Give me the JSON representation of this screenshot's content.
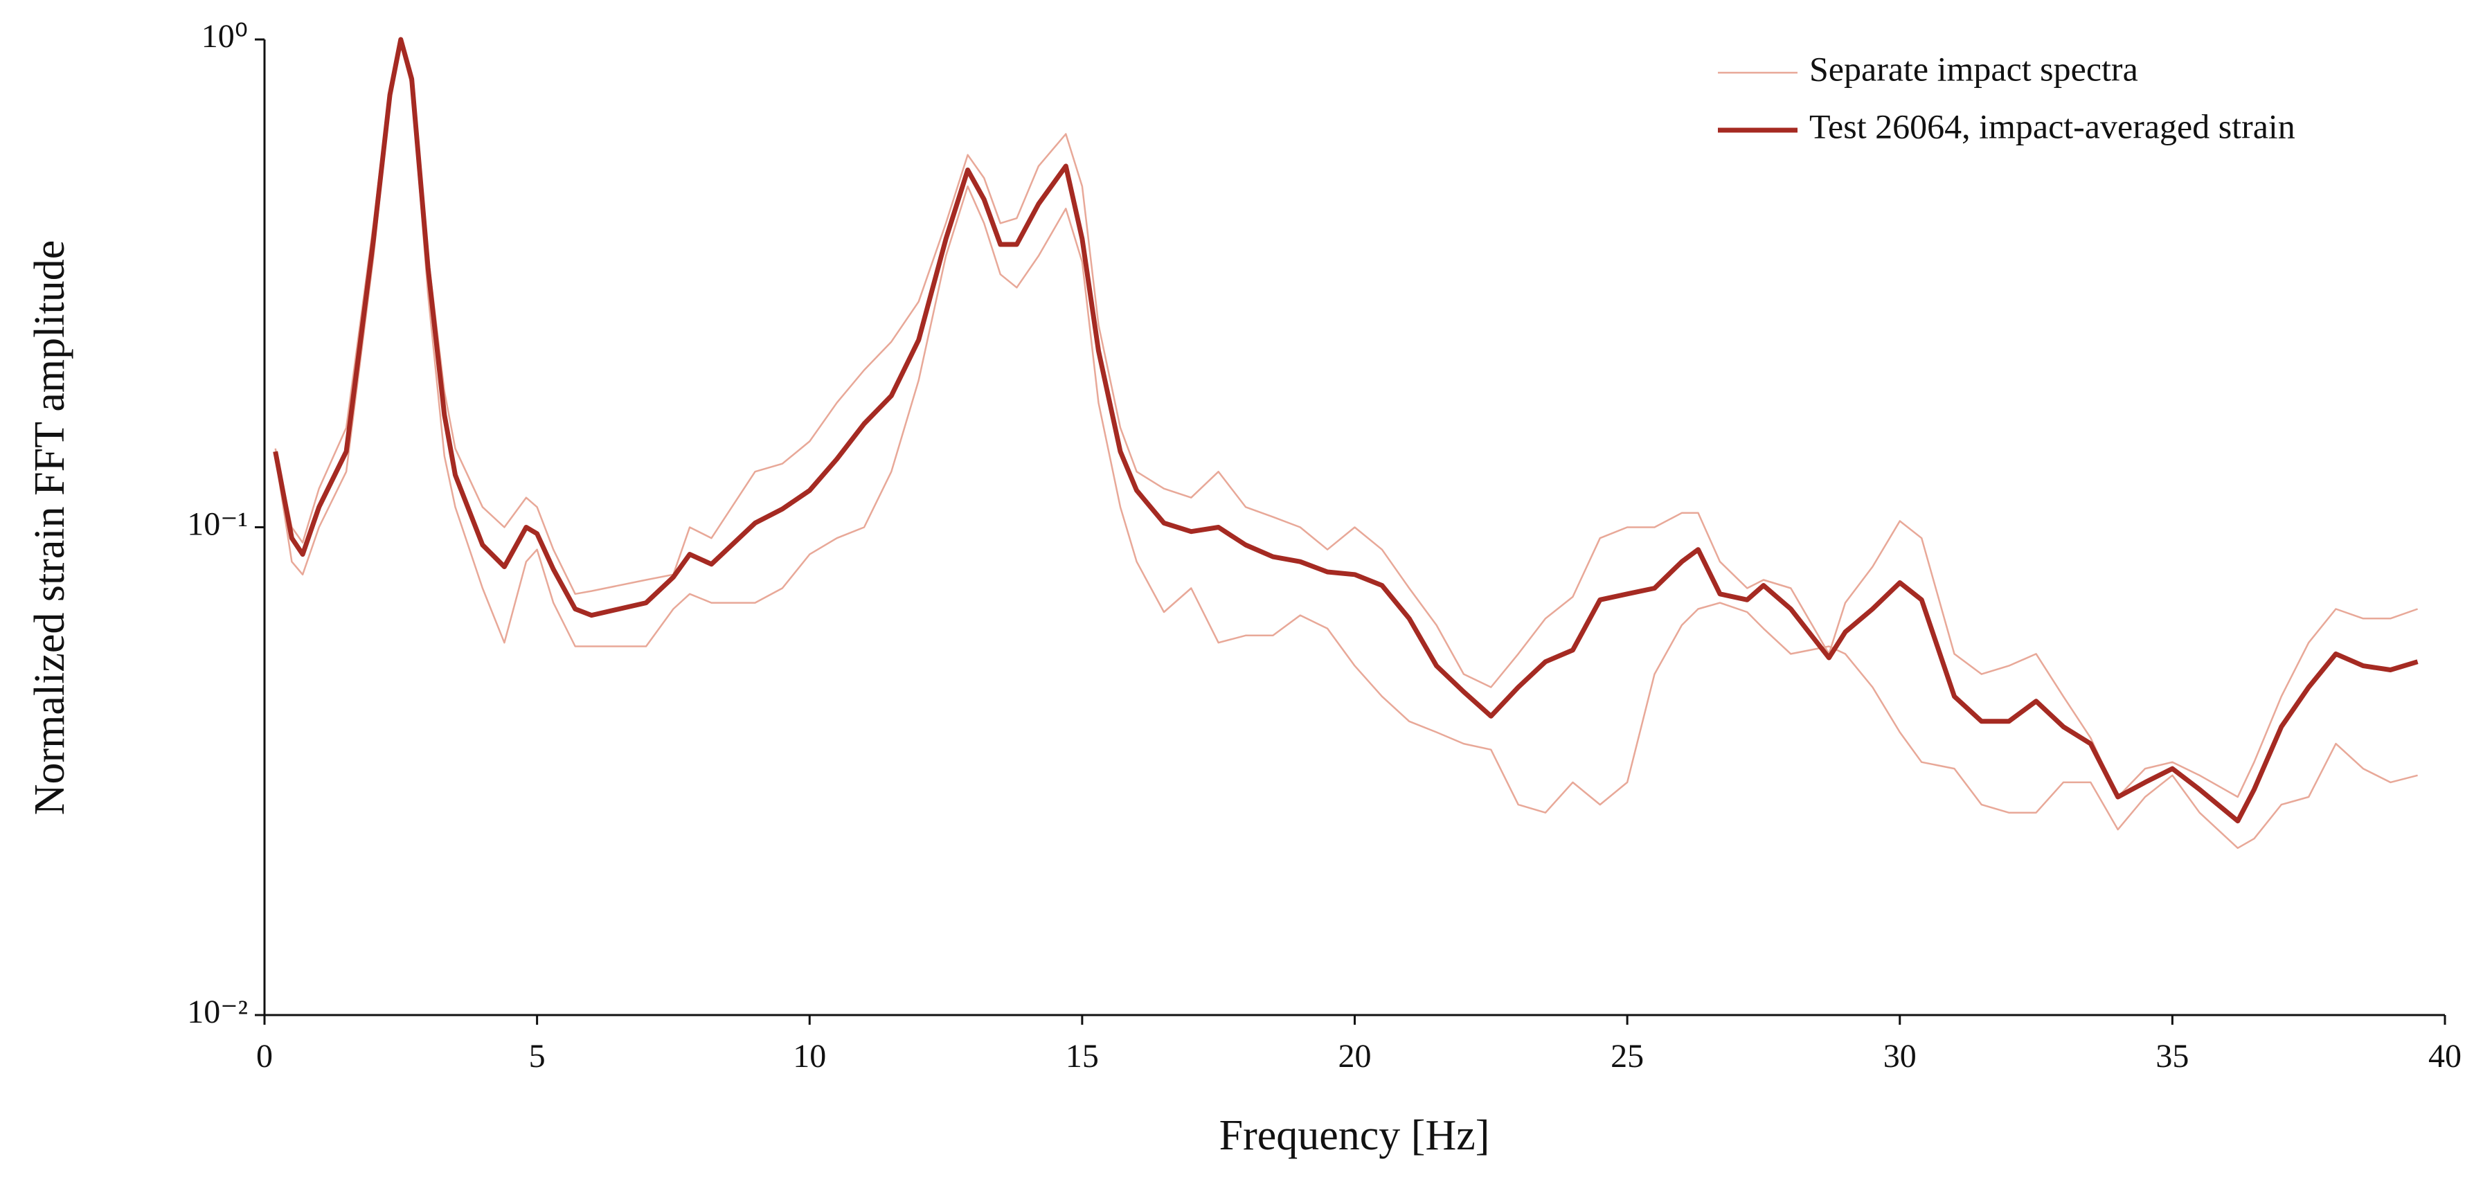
{
  "chart_data": {
    "type": "line",
    "xlabel": "Frequency [Hz]",
    "ylabel": "Normalized strain FFT amplitude",
    "yscale": "log",
    "grid": false,
    "legend": "upper right",
    "xlim": [
      0,
      40
    ],
    "xticks": [
      0,
      5,
      10,
      15,
      20,
      25,
      30,
      35,
      40
    ],
    "ylim": [
      0.01,
      1
    ],
    "yticks": [
      {
        "value": 0.01,
        "label": "10⁻²"
      },
      {
        "value": 0.1,
        "label": "10⁻¹"
      },
      {
        "value": 1,
        "label": "10⁰"
      }
    ],
    "x": [
      0.2,
      0.5,
      0.7,
      1.0,
      1.5,
      2.0,
      2.3,
      2.5,
      2.7,
      3.0,
      3.3,
      3.5,
      4.0,
      4.4,
      4.8,
      5.0,
      5.3,
      5.7,
      6.0,
      7.0,
      7.5,
      7.8,
      8.2,
      9.0,
      9.5,
      10.0,
      10.5,
      11.0,
      11.5,
      12.0,
      12.5,
      12.9,
      13.2,
      13.5,
      13.8,
      14.2,
      14.7,
      15.0,
      15.3,
      15.7,
      16.0,
      16.5,
      17.0,
      17.5,
      18.0,
      18.5,
      19.0,
      19.5,
      20.0,
      20.5,
      21.0,
      21.5,
      22.0,
      22.5,
      23.0,
      23.5,
      24.0,
      24.5,
      25.0,
      25.5,
      26.0,
      26.3,
      26.7,
      27.2,
      27.5,
      28.0,
      28.7,
      29.0,
      29.5,
      30.0,
      30.4,
      31.0,
      31.5,
      32.0,
      32.5,
      33.0,
      33.5,
      34.0,
      34.5,
      35.0,
      35.5,
      36.2,
      36.5,
      37.0,
      37.5,
      38.0,
      38.5,
      39.0,
      39.5
    ],
    "series": [
      {
        "name": "Separate impact spectra",
        "color": "#e8a898",
        "width": 2.5,
        "values": [
          0.145,
          0.1,
          0.093,
          0.12,
          0.16,
          0.42,
          0.8,
          1.0,
          0.85,
          0.36,
          0.19,
          0.145,
          0.11,
          0.1,
          0.115,
          0.11,
          0.09,
          0.073,
          0.074,
          0.078,
          0.08,
          0.1,
          0.095,
          0.13,
          0.135,
          0.15,
          0.18,
          0.21,
          0.24,
          0.29,
          0.42,
          0.58,
          0.52,
          0.42,
          0.43,
          0.55,
          0.64,
          0.5,
          0.26,
          0.16,
          0.13,
          0.12,
          0.115,
          0.13,
          0.11,
          0.105,
          0.1,
          0.09,
          0.1,
          0.09,
          0.075,
          0.063,
          0.05,
          0.047,
          0.055,
          0.065,
          0.072,
          0.095,
          0.1,
          0.1,
          0.107,
          0.107,
          0.085,
          0.075,
          0.078,
          0.075,
          0.055,
          0.07,
          0.083,
          0.103,
          0.095,
          0.055,
          0.05,
          0.052,
          0.055,
          0.045,
          0.037,
          0.028,
          0.032,
          0.033,
          0.031,
          0.028,
          0.033,
          0.045,
          0.058,
          0.068,
          0.065,
          0.065,
          0.068
        ]
      },
      {
        "color": "#e8a898",
        "width": 2.5,
        "values": [
          0.14,
          0.085,
          0.08,
          0.1,
          0.13,
          0.36,
          0.75,
          0.98,
          0.8,
          0.3,
          0.14,
          0.11,
          0.075,
          0.058,
          0.085,
          0.09,
          0.07,
          0.057,
          0.057,
          0.057,
          0.068,
          0.073,
          0.07,
          0.07,
          0.075,
          0.088,
          0.095,
          0.1,
          0.13,
          0.2,
          0.36,
          0.5,
          0.42,
          0.33,
          0.31,
          0.36,
          0.45,
          0.35,
          0.18,
          0.11,
          0.085,
          0.067,
          0.075,
          0.058,
          0.06,
          0.06,
          0.066,
          0.062,
          0.052,
          0.045,
          0.04,
          0.038,
          0.036,
          0.035,
          0.027,
          0.026,
          0.03,
          0.027,
          0.03,
          0.05,
          0.063,
          0.068,
          0.07,
          0.067,
          0.062,
          0.055,
          0.057,
          0.055,
          0.047,
          0.038,
          0.033,
          0.032,
          0.027,
          0.026,
          0.026,
          0.03,
          0.03,
          0.024,
          0.028,
          0.031,
          0.026,
          0.022,
          0.023,
          0.027,
          0.028,
          0.036,
          0.032,
          0.03,
          0.031
        ]
      },
      {
        "name": "Test 26064, impact-averaged strain",
        "color": "#a52a22",
        "width": 7,
        "values": [
          0.143,
          0.095,
          0.088,
          0.11,
          0.143,
          0.39,
          0.77,
          1.0,
          0.83,
          0.34,
          0.17,
          0.128,
          0.092,
          0.083,
          0.1,
          0.097,
          0.082,
          0.068,
          0.066,
          0.07,
          0.079,
          0.088,
          0.084,
          0.102,
          0.109,
          0.119,
          0.138,
          0.163,
          0.186,
          0.242,
          0.39,
          0.54,
          0.47,
          0.38,
          0.38,
          0.46,
          0.55,
          0.39,
          0.23,
          0.143,
          0.119,
          0.102,
          0.098,
          0.1,
          0.092,
          0.087,
          0.085,
          0.081,
          0.08,
          0.076,
          0.065,
          0.052,
          0.046,
          0.041,
          0.047,
          0.053,
          0.056,
          0.071,
          0.073,
          0.075,
          0.085,
          0.09,
          0.073,
          0.071,
          0.076,
          0.068,
          0.054,
          0.061,
          0.068,
          0.077,
          0.071,
          0.045,
          0.04,
          0.04,
          0.044,
          0.039,
          0.036,
          0.028,
          0.03,
          0.032,
          0.029,
          0.025,
          0.029,
          0.039,
          0.047,
          0.055,
          0.052,
          0.051,
          0.053
        ]
      }
    ]
  }
}
